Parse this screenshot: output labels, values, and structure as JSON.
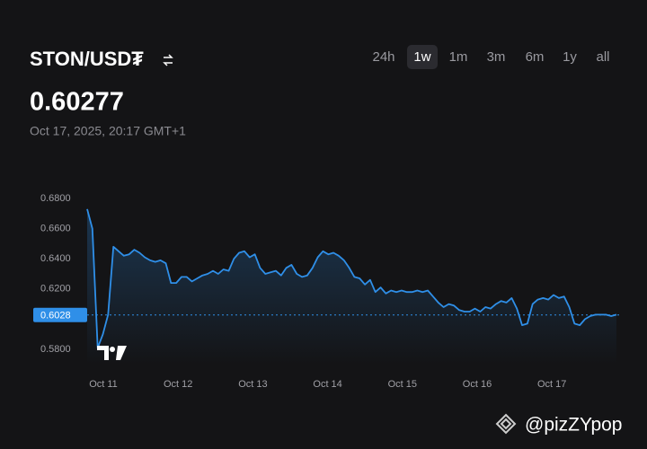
{
  "header": {
    "pair": "STON/USD₮",
    "price": "0.60277",
    "timestamp": "Oct 17, 2025, 20:17 GMT+1"
  },
  "ranges": [
    "24h",
    "1w",
    "1m",
    "3m",
    "6m",
    "1y",
    "all"
  ],
  "selected_range": 1,
  "chart_data": {
    "type": "line",
    "xtick_labels": [
      "Oct 11",
      "Oct 12",
      "Oct 13",
      "Oct 14",
      "Oct 15",
      "Oct 16",
      "Oct 17"
    ],
    "series": [
      {
        "color": "#2f8fe8",
        "values": [
          0.673,
          0.66,
          0.581,
          0.59,
          0.603,
          0.648,
          0.645,
          0.642,
          0.643,
          0.646,
          0.644,
          0.641,
          0.639,
          0.638,
          0.639,
          0.637,
          0.624,
          0.624,
          0.628,
          0.628,
          0.625,
          0.627,
          0.629,
          0.63,
          0.632,
          0.63,
          0.633,
          0.632,
          0.64,
          0.644,
          0.645,
          0.641,
          0.643,
          0.634,
          0.63,
          0.631,
          0.632,
          0.629,
          0.634,
          0.636,
          0.63,
          0.628,
          0.629,
          0.634,
          0.641,
          0.645,
          0.643,
          0.644,
          0.642,
          0.639,
          0.634,
          0.628,
          0.627,
          0.623,
          0.626,
          0.618,
          0.621,
          0.617,
          0.619,
          0.618,
          0.619,
          0.618,
          0.618,
          0.619,
          0.618,
          0.619,
          0.615,
          0.611,
          0.608,
          0.61,
          0.609,
          0.606,
          0.605,
          0.605,
          0.607,
          0.605,
          0.608,
          0.607,
          0.61,
          0.612,
          0.611,
          0.614,
          0.607,
          0.596,
          0.597,
          0.61,
          0.613,
          0.614,
          0.613,
          0.616,
          0.614,
          0.615,
          0.608,
          0.597,
          0.596,
          0.6,
          0.602,
          0.603,
          0.603,
          0.603,
          0.602,
          0.603
        ]
      }
    ],
    "ylim": [
      0.57,
      0.69
    ],
    "yticks": [
      {
        "value": 0.58,
        "label": "0.5800"
      },
      {
        "value": 0.62,
        "label": "0.6200"
      },
      {
        "value": 0.64,
        "label": "0.6400"
      },
      {
        "value": 0.66,
        "label": "0.6600"
      },
      {
        "value": 0.68,
        "label": "0.6800"
      }
    ],
    "last_price": {
      "value": 0.6028,
      "label": "0.6028"
    }
  },
  "watermark": "@pizZYpop"
}
